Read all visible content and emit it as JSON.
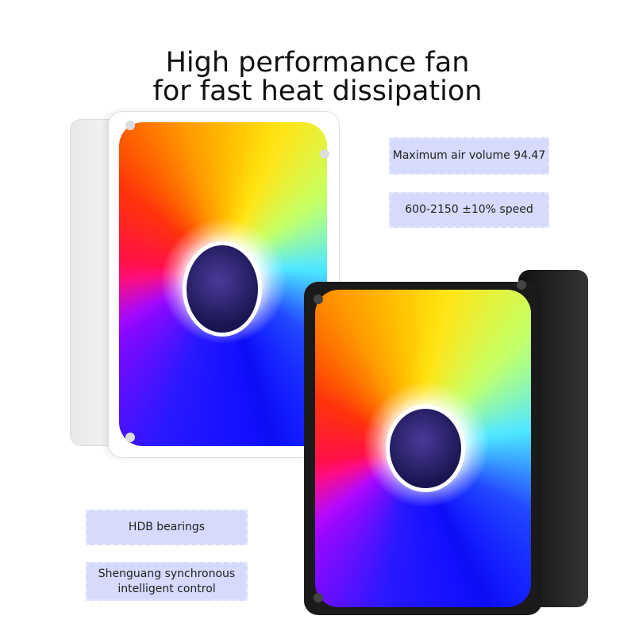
{
  "headline": {
    "line1": "High performance fan",
    "line2": "for fast heat dissipation"
  },
  "features": [
    {
      "label": "Maximum air volume 94.47"
    },
    {
      "label": "600-2150 ±10% speed"
    },
    {
      "label": "HDB bearings"
    },
    {
      "label": "Shenguang synchronous intelligent control"
    }
  ],
  "colors": {
    "badge_bg": "#d6dafc",
    "white_fan_frame": "#ffffff",
    "black_fan_frame": "#1a1a1a"
  }
}
